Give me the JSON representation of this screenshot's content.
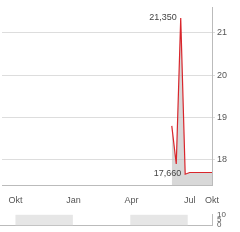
{
  "chart_data": [
    {
      "type": "line",
      "categories": [
        null,
        null,
        null,
        "Okt",
        null,
        null,
        null,
        null,
        null,
        null,
        null,
        null,
        null,
        null,
        null,
        null,
        "Jan",
        null,
        null,
        null,
        null,
        null,
        null,
        null,
        null,
        null,
        null,
        null,
        null,
        "Apr",
        null,
        null,
        null,
        null,
        null,
        null,
        null,
        null,
        null,
        null,
        null,
        null,
        "Jul",
        null,
        null,
        null,
        null,
        "Okt"
      ],
      "values": [
        null,
        null,
        null,
        null,
        null,
        null,
        null,
        null,
        null,
        null,
        null,
        null,
        null,
        null,
        null,
        null,
        null,
        null,
        null,
        null,
        null,
        null,
        null,
        null,
        null,
        null,
        null,
        null,
        null,
        null,
        null,
        null,
        null,
        null,
        null,
        null,
        null,
        null,
        18.8,
        17.9,
        21.35,
        17.66,
        17.7,
        17.7,
        17.7,
        17.7,
        17.7,
        17.7
      ],
      "color": "#d9262c",
      "ylim": [
        17.4,
        21.6
      ],
      "yticks": [
        18,
        19,
        20,
        21
      ],
      "grid": true,
      "annotations": [
        {
          "text": "21,350",
          "value": 21.35
        },
        {
          "text": "17,660",
          "value": 17.66
        }
      ]
    },
    {
      "type": "bar",
      "categories": [
        null,
        null,
        null,
        "Okt",
        null,
        null,
        null,
        null,
        null,
        null,
        null,
        null,
        null,
        null,
        null,
        null,
        "Jan",
        null,
        null,
        null,
        null,
        null,
        null,
        null,
        null,
        null,
        null,
        null,
        null,
        "Apr",
        null,
        null,
        null,
        null,
        null,
        null,
        null,
        null,
        null,
        null,
        null,
        null,
        "Jul",
        null,
        null,
        null,
        null,
        "Okt"
      ],
      "values": [
        null,
        null,
        null,
        null,
        null,
        null,
        null,
        null,
        null,
        null,
        null,
        null,
        null,
        null,
        null,
        null,
        null,
        null,
        null,
        null,
        null,
        null,
        null,
        null,
        null,
        null,
        null,
        null,
        null,
        null,
        null,
        null,
        null,
        null,
        null,
        null,
        null,
        null,
        0,
        0,
        0,
        0,
        0,
        0,
        0,
        0,
        0,
        0
      ],
      "color": "#999999",
      "ylim": [
        0,
        10
      ],
      "yticks": [
        0,
        5,
        10
      ],
      "grid": false,
      "tick_labels": "y"
    }
  ]
}
